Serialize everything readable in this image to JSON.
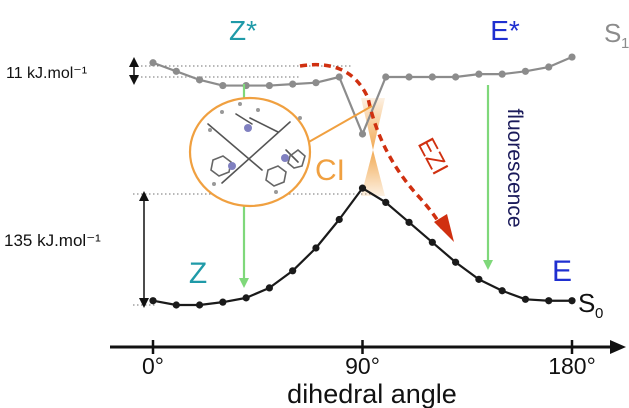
{
  "labels": {
    "z_star": "Z*",
    "e_star": "E*",
    "s1_base": "S",
    "s1_sub": "1",
    "s0_base": "S",
    "s0_sub": "0",
    "z": "Z",
    "e": "E",
    "ci": "CI",
    "ezi": "EZI",
    "fluorescence": "fluorescence",
    "barrier_s1": "11 kJ.mol⁻¹",
    "barrier_s0": "135 kJ.mol⁻¹",
    "axis_title": "dihedral angle",
    "ticks": [
      "0°",
      "90°",
      "180°"
    ]
  },
  "colors": {
    "s1_curve": "#8c8c8c",
    "s0_curve": "#1a1a1a",
    "z_label": "#1f9aa8",
    "e_label": "#1f2fd0",
    "ci": "#f0a040",
    "ezi": "#d03010",
    "fluorescence_text": "#1a1a5a",
    "green_arrow": "#7fd87a"
  },
  "icons": {
    "molecule": "molecule-structure-icon"
  },
  "chart_data": {
    "type": "line",
    "x": [
      0,
      10,
      20,
      30,
      40,
      50,
      60,
      70,
      80,
      90,
      100,
      110,
      120,
      130,
      140,
      150,
      160,
      170,
      180
    ],
    "xlim": [
      0,
      180
    ],
    "xlabel": "dihedral angle",
    "ticks": [
      0,
      90,
      180
    ],
    "series": [
      {
        "name": "S1",
        "values": [
          0.85,
          0.82,
          0.79,
          0.77,
          0.77,
          0.77,
          0.775,
          0.78,
          0.8,
          0.6,
          0.8,
          0.8,
          0.8,
          0.8,
          0.81,
          0.81,
          0.82,
          0.835,
          0.87
        ]
      },
      {
        "name": "S0",
        "values": [
          0.015,
          0.0,
          0.0,
          0.01,
          0.025,
          0.06,
          0.12,
          0.2,
          0.3,
          0.41,
          0.36,
          0.29,
          0.22,
          0.15,
          0.09,
          0.05,
          0.02,
          0.015,
          0.015
        ]
      }
    ]
  }
}
